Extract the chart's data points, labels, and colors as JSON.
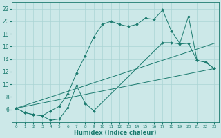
{
  "xlabel": "Humidex (Indice chaleur)",
  "bg_color": "#cce8e8",
  "line_color": "#1a7a6e",
  "grid_color": "#aad4d4",
  "xlim": [
    -0.5,
    23.5
  ],
  "ylim": [
    4,
    23
  ],
  "yticks": [
    6,
    8,
    10,
    12,
    14,
    16,
    18,
    20,
    22
  ],
  "xticks": [
    0,
    1,
    2,
    3,
    4,
    5,
    6,
    7,
    8,
    9,
    10,
    11,
    12,
    13,
    14,
    15,
    16,
    17,
    18,
    19,
    20,
    21,
    22,
    23
  ],
  "line1_x": [
    0,
    1,
    2,
    3,
    4,
    5,
    6,
    7,
    8,
    9,
    10,
    11,
    12,
    13,
    14,
    15,
    16,
    17,
    18,
    19,
    20,
    21,
    22,
    23
  ],
  "line1_y": [
    6.2,
    5.5,
    5.2,
    5.0,
    5.8,
    6.5,
    8.5,
    11.8,
    14.5,
    17.5,
    19.5,
    20.0,
    19.5,
    19.2,
    19.5,
    20.5,
    20.3,
    21.8,
    18.5,
    16.5,
    20.8,
    13.8,
    13.5,
    12.5
  ],
  "line2_x": [
    0,
    1,
    2,
    3,
    4,
    5,
    6,
    7,
    8,
    9,
    17,
    18,
    19,
    20,
    21,
    22,
    23
  ],
  "line2_y": [
    6.2,
    5.5,
    5.2,
    5.0,
    4.3,
    4.5,
    6.3,
    9.8,
    7.0,
    5.8,
    16.6,
    16.6,
    16.4,
    16.5,
    13.8,
    13.5,
    12.5
  ],
  "line3_x": [
    0,
    23
  ],
  "line3_y": [
    6.2,
    12.5
  ],
  "line4_x": [
    0,
    23
  ],
  "line4_y": [
    6.2,
    16.5
  ]
}
